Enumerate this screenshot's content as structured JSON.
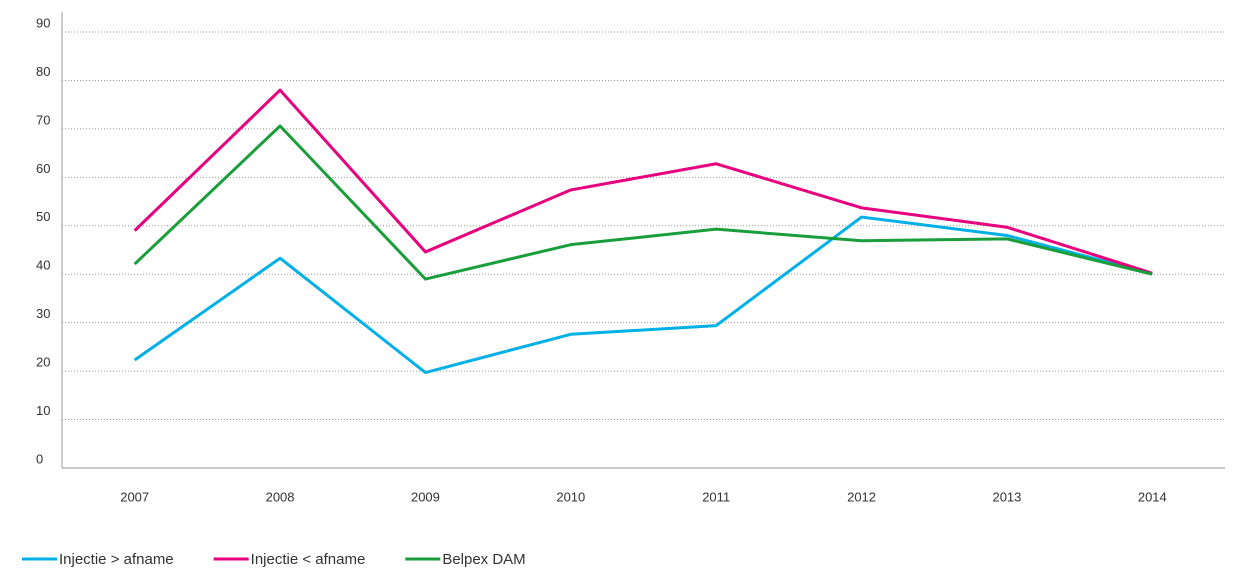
{
  "chart_data": {
    "type": "line",
    "categories": [
      "2007",
      "2008",
      "2009",
      "2010",
      "2011",
      "2012",
      "2013",
      "2014"
    ],
    "series": [
      {
        "name": "Injectie > afname",
        "color": "#00b0e6",
        "values": [
          22.3,
          43.3,
          19.7,
          27.6,
          29.4,
          51.8,
          48.0,
          40.1
        ]
      },
      {
        "name": "Injectie < afname",
        "color": "#e6007e",
        "values": [
          49.0,
          78.0,
          44.6,
          57.4,
          62.8,
          53.7,
          49.7,
          40.2
        ]
      },
      {
        "name": "Belpex DAM",
        "color": "#1a9e3c",
        "values": [
          42.1,
          70.6,
          39.0,
          46.1,
          49.3,
          46.9,
          47.3,
          40.0
        ]
      }
    ],
    "ylim": [
      0,
      90
    ],
    "yticks": [
      0,
      10,
      20,
      30,
      40,
      50,
      60,
      70,
      80,
      90
    ],
    "grid": true,
    "legend": "bottom"
  }
}
